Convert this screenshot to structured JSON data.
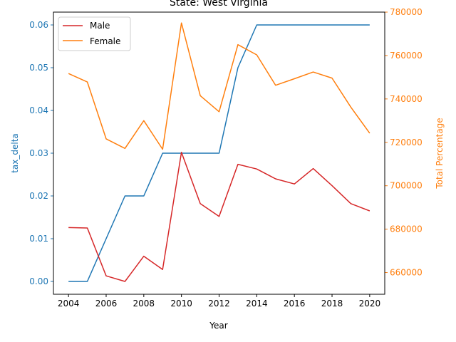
{
  "chart_data": {
    "type": "line",
    "title": "State: West Virginia",
    "xlabel": "Year",
    "ylabel_left": "tax_delta",
    "ylabel_right": "Total Percentage",
    "x": [
      2004,
      2005,
      2006,
      2007,
      2008,
      2009,
      2010,
      2011,
      2012,
      2013,
      2014,
      2015,
      2016,
      2017,
      2018,
      2019,
      2020
    ],
    "xlim": [
      2003.2,
      2020.8
    ],
    "xticks": [
      2004,
      2006,
      2008,
      2010,
      2012,
      2014,
      2016,
      2018,
      2020
    ],
    "ylim_left": [
      -0.003,
      0.063
    ],
    "yticks_left": [
      "0.00",
      "0.01",
      "0.02",
      "0.03",
      "0.04",
      "0.05",
      "0.06"
    ],
    "ylim_right": [
      650000,
      780000
    ],
    "yticks_right": [
      "660000",
      "680000",
      "700000",
      "720000",
      "740000",
      "760000",
      "780000"
    ],
    "grid": false,
    "legend_position": "upper-left",
    "series": [
      {
        "name": "",
        "axis": "left",
        "color": "#1f77b4",
        "values": [
          0.0,
          0.0,
          0.01,
          0.02,
          0.02,
          0.03,
          0.03,
          0.03,
          0.03,
          0.05,
          0.06,
          0.06,
          0.06,
          0.06,
          0.06,
          0.06,
          0.06
        ]
      },
      {
        "name": "Male",
        "axis": "left",
        "color": "#d62728",
        "values": [
          0.0126,
          0.0125,
          0.0013,
          0.0,
          0.0059,
          0.0028,
          0.0302,
          0.0182,
          0.0152,
          0.0274,
          0.0263,
          0.024,
          0.0228,
          0.0264,
          0.0224,
          0.0182,
          0.0165
        ]
      },
      {
        "name": "Female",
        "axis": "right",
        "color": "#ff7f0e",
        "values": [
          751700,
          747800,
          721600,
          717200,
          730000,
          716800,
          775000,
          741500,
          734100,
          765000,
          760300,
          746300,
          749300,
          752400,
          749600,
          736200,
          724200
        ]
      }
    ]
  }
}
